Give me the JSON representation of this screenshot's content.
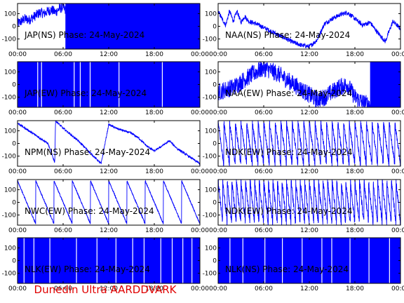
{
  "footer_text": "Dunedin Ultra AARDDVARK",
  "colors": {
    "trace": "#0000ff",
    "axes": "#000000",
    "footer": "#e00000"
  },
  "chart_data": [
    {
      "type": "line",
      "title": "JAP(NS) Phase: 24-May-2024",
      "xlim": [
        "00:00",
        "24:00"
      ],
      "ylim": [
        -180,
        180
      ],
      "x_tick_labels": [
        "00:00",
        "06:00",
        "12:00",
        "18:00",
        "00:00"
      ],
      "y_tick_values": [
        -100,
        0,
        100
      ],
      "y_tick_labels": [
        "-100",
        "0",
        "100"
      ],
      "segments": [
        {
          "kind": "trace",
          "hours": [
            0,
            0.5,
            1,
            1.5,
            2,
            2.5,
            3,
            3.5,
            4,
            4.5,
            5,
            5.5,
            6,
            6.3
          ],
          "values": [
            20,
            40,
            60,
            50,
            70,
            90,
            110,
            100,
            120,
            130,
            110,
            140,
            150,
            130
          ],
          "noise": 40
        },
        {
          "kind": "solid",
          "from": 6.3,
          "to": 24
        }
      ]
    },
    {
      "type": "line",
      "title": "NAA(NS) Phase: 24-May-2024",
      "xlim": [
        "00:00",
        "24:00"
      ],
      "ylim": [
        -180,
        180
      ],
      "x_tick_labels": [
        "00:00",
        "06:00",
        "12:00",
        "18:00",
        "00:00"
      ],
      "y_tick_values": [
        -100,
        0,
        100
      ],
      "y_tick_labels": [
        "-100",
        "0",
        "100"
      ],
      "segments": [
        {
          "kind": "trace",
          "hours": [
            0,
            0.5,
            1,
            1.5,
            2,
            2.5,
            3,
            3.5,
            4,
            5,
            6,
            7,
            8,
            9,
            10,
            11,
            12,
            13,
            14,
            15,
            16,
            17,
            18,
            19,
            20,
            21,
            22,
            23,
            24
          ],
          "values": [
            120,
            60,
            10,
            120,
            40,
            120,
            30,
            80,
            40,
            20,
            -10,
            -40,
            -70,
            -100,
            -130,
            -150,
            -160,
            -110,
            20,
            60,
            90,
            110,
            60,
            10,
            30,
            -50,
            -120,
            40,
            -20
          ],
          "noise": 18
        }
      ]
    },
    {
      "type": "line",
      "title": "JAP(EW) Phase: 24-May-2024",
      "xlim": [
        "00:00",
        "24:00"
      ],
      "ylim": [
        -180,
        180
      ],
      "x_tick_labels": [
        "00:00",
        "06:00",
        "12:00",
        "18:00",
        "00:00"
      ],
      "y_tick_values": [
        -100,
        0,
        100
      ],
      "y_tick_labels": [
        "-100",
        "0",
        "100"
      ],
      "segments": [
        {
          "kind": "solid",
          "from": 0,
          "to": 24,
          "gaps": [
            2.6,
            3.1,
            7.4,
            8.2,
            9.5,
            13.3,
            19.0
          ]
        }
      ]
    },
    {
      "type": "line",
      "title": "NAA(EW) Phase: 24-May-2024",
      "xlim": [
        "00:00",
        "24:00"
      ],
      "ylim": [
        -180,
        180
      ],
      "x_tick_labels": [
        "00:00",
        "06:00",
        "12:00",
        "18:00",
        "00:00"
      ],
      "y_tick_values": [
        -100,
        0,
        100
      ],
      "y_tick_labels": [
        "-100",
        "0",
        "100"
      ],
      "segments": [
        {
          "kind": "trace",
          "hours": [
            0,
            1,
            2,
            3,
            4,
            5,
            6,
            7,
            8,
            9,
            10,
            11,
            12,
            13,
            14,
            15,
            16,
            17,
            18,
            19,
            20
          ],
          "values": [
            -60,
            -40,
            -20,
            20,
            60,
            100,
            130,
            110,
            80,
            40,
            0,
            -40,
            -80,
            -120,
            -100,
            -60,
            -20,
            0,
            -100,
            -140,
            -160
          ],
          "noise": 70
        },
        {
          "kind": "solid",
          "from": 20,
          "to": 24
        }
      ]
    },
    {
      "type": "line",
      "title": "NPM(NS) Phase: 24-May-2024",
      "xlim": [
        "00:00",
        "24:00"
      ],
      "ylim": [
        -180,
        180
      ],
      "x_tick_labels": [
        "00:00",
        "06:00",
        "12:00",
        "18:00",
        "00:00"
      ],
      "y_tick_values": [
        -100,
        0,
        100
      ],
      "y_tick_labels": [
        "-100",
        "0",
        "100"
      ],
      "segments": [
        {
          "kind": "trace",
          "hours": [
            0,
            1,
            2,
            3,
            4,
            4.9,
            5.0,
            6,
            7,
            8,
            9,
            10,
            11,
            12,
            13,
            14,
            15,
            16,
            17,
            18,
            19,
            20,
            21,
            22,
            23,
            24
          ],
          "values": [
            160,
            120,
            80,
            40,
            0,
            -150,
            180,
            120,
            70,
            20,
            -40,
            -100,
            -160,
            150,
            120,
            100,
            80,
            40,
            -20,
            -60,
            -20,
            20,
            -40,
            -80,
            -120,
            -160
          ],
          "noise": 8
        }
      ]
    },
    {
      "type": "line",
      "title": "NDK(EW) Phase: 24-May-2024",
      "xlim": [
        "00:00",
        "24:00"
      ],
      "ylim": [
        -180,
        180
      ],
      "x_tick_labels": [
        "00:00",
        "06:00",
        "12:00",
        "18:00",
        "00:00"
      ],
      "y_tick_values": [
        -100,
        0,
        100
      ],
      "y_tick_labels": [
        "-100",
        "0",
        "100"
      ],
      "segments": [
        {
          "kind": "sawtooth",
          "from": 0,
          "to": 24,
          "period": 0.75,
          "noise": 25
        }
      ]
    },
    {
      "type": "line",
      "title": "NWC(EW) Phase: 24-May-2024",
      "xlim": [
        "00:00",
        "24:00"
      ],
      "ylim": [
        -180,
        180
      ],
      "x_tick_labels": [
        "00:00",
        "06:00",
        "12:00",
        "18:00",
        "00:00"
      ],
      "y_tick_values": [
        -100,
        0,
        100
      ],
      "y_tick_labels": [
        "-100",
        "0",
        "100"
      ],
      "segments": [
        {
          "kind": "sawtooth",
          "from": 0,
          "to": 24,
          "period": 2.4,
          "noise": 6
        }
      ]
    },
    {
      "type": "line",
      "title": "NDK(EW) Phase: 24-May-2024",
      "xlim": [
        "00:00",
        "24:00"
      ],
      "ylim": [
        -180,
        180
      ],
      "x_tick_labels": [
        "00:00",
        "06:00",
        "12:00",
        "18:00",
        "00:00"
      ],
      "y_tick_values": [
        -100,
        0,
        100
      ],
      "y_tick_labels": [
        "-100",
        "0",
        "100"
      ],
      "segments": [
        {
          "kind": "sawtooth",
          "from": 0,
          "to": 24,
          "period": 0.6,
          "noise": 30
        }
      ]
    },
    {
      "type": "line",
      "title": "NLK(EW) Phase: 24-May-2024",
      "xlim": [
        "00:00",
        "24:00"
      ],
      "ylim": [
        -180,
        180
      ],
      "x_tick_labels": [
        "00:00",
        "06:00",
        "12:00",
        "18:00",
        "00:00"
      ],
      "y_tick_values": [
        -100,
        0,
        100
      ],
      "y_tick_labels": [
        "-100",
        "0",
        "100"
      ],
      "segments": [
        {
          "kind": "solid",
          "from": 0,
          "to": 24,
          "gaps": [
            0.8,
            2.1,
            4.2,
            7.7,
            10.4,
            12.9,
            15.1,
            16.6,
            18.8,
            20.3,
            21.7,
            22.9
          ]
        }
      ]
    },
    {
      "type": "line",
      "title": "NLK(NS) Phase: 24-May-2024",
      "xlim": [
        "00:00",
        "24:00"
      ],
      "ylim": [
        -180,
        180
      ],
      "x_tick_labels": [
        "00:00",
        "06:00",
        "12:00",
        "18:00",
        "00:00"
      ],
      "y_tick_values": [
        -100,
        0,
        100
      ],
      "y_tick_labels": [
        "-100",
        "0",
        "100"
      ],
      "segments": [
        {
          "kind": "solid",
          "from": 0,
          "to": 24,
          "gaps": [
            1.5,
            3.2,
            6.1,
            8.4,
            11.0,
            13.6,
            14.9,
            17.3,
            19.8,
            22.5
          ]
        }
      ]
    }
  ]
}
